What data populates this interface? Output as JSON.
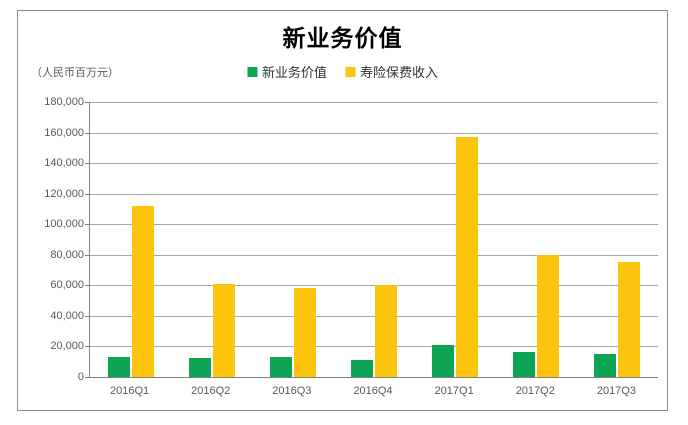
{
  "chart_data": {
    "type": "bar",
    "title": "新业务价值",
    "unit_label": "（人民币百万元）",
    "categories": [
      "2016Q1",
      "2016Q2",
      "2016Q3",
      "2016Q4",
      "2017Q1",
      "2017Q2",
      "2017Q3"
    ],
    "series": [
      {
        "name": "新业务价值",
        "color": "#0DA553",
        "values": [
          13000,
          12500,
          13000,
          11000,
          21000,
          16500,
          14800
        ]
      },
      {
        "name": "寿险保费收入",
        "color": "#FDC40D",
        "values": [
          112000,
          61000,
          58500,
          60500,
          157000,
          80000,
          75500
        ]
      }
    ],
    "ylim": [
      0,
      180000
    ],
    "ytick_step": 20000,
    "grid": true,
    "legend_position": "top",
    "colors": {
      "frame_border": "#8c8c8c",
      "gridline": "#a6a6a6",
      "axis_line": "#808080",
      "tick_label": "#595959",
      "title": "#000000"
    }
  }
}
